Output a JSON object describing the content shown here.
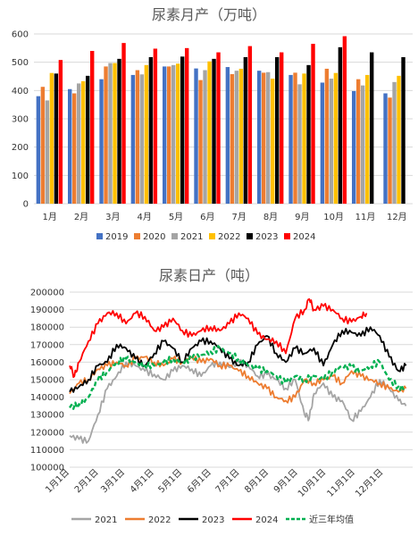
{
  "chart_data": [
    {
      "type": "bar",
      "title": "尿素月产（万吨）",
      "categories": [
        "1月",
        "2月",
        "3月",
        "4月",
        "5月",
        "6月",
        "7月",
        "8月",
        "9月",
        "10月",
        "11月",
        "12月"
      ],
      "ylim": [
        0,
        600
      ],
      "yticks": [
        "0",
        "100",
        "200",
        "300",
        "400",
        "500",
        "600"
      ],
      "legend_position": "bottom",
      "series": [
        {
          "name": "2019",
          "color": "#4472C4",
          "values": [
            380,
            405,
            440,
            455,
            485,
            478,
            483,
            470,
            455,
            428,
            398,
            390
          ]
        },
        {
          "name": "2020",
          "color": "#ED7D31",
          "values": [
            413,
            390,
            485,
            472,
            485,
            437,
            458,
            463,
            463,
            477,
            440,
            375
          ]
        },
        {
          "name": "2021",
          "color": "#A5A5A5",
          "values": [
            365,
            425,
            497,
            457,
            490,
            472,
            470,
            465,
            422,
            442,
            418,
            430
          ]
        },
        {
          "name": "2022",
          "color": "#FFC000",
          "values": [
            462,
            433,
            497,
            490,
            495,
            503,
            477,
            442,
            460,
            462,
            455,
            452
          ]
        },
        {
          "name": "2023",
          "color": "#000000",
          "values": [
            460,
            452,
            512,
            518,
            520,
            512,
            518,
            518,
            490,
            553,
            535,
            518
          ]
        },
        {
          "name": "2024",
          "color": "#FF0000",
          "values": [
            508,
            540,
            568,
            548,
            550,
            535,
            557,
            535,
            565,
            592,
            null,
            null
          ]
        }
      ]
    },
    {
      "type": "line",
      "title": "尿素日产（吨）",
      "ylim": [
        100000,
        200000
      ],
      "yticks": [
        "100000",
        "110000",
        "120000",
        "130000",
        "140000",
        "150000",
        "160000",
        "170000",
        "180000",
        "190000",
        "200000"
      ],
      "xticks": [
        "1月1日",
        "2月1日",
        "3月1日",
        "4月1日",
        "5月1日",
        "6月1日",
        "7月1日",
        "8月1日",
        "9月1日",
        "10月1日",
        "11月1日",
        "12月1日"
      ],
      "legend_position": "bottom",
      "series": [
        {
          "name": "2021",
          "color": "#A5A5A5",
          "dash": "",
          "points": [
            [
              0,
              118000
            ],
            [
              10,
              116000
            ],
            [
              20,
              115000
            ],
            [
              30,
              130000
            ],
            [
              40,
              145000
            ],
            [
              50,
              152000
            ],
            [
              60,
              160000
            ],
            [
              70,
              158000
            ],
            [
              80,
              155000
            ],
            [
              90,
              153000
            ],
            [
              100,
              150000
            ],
            [
              110,
              155000
            ],
            [
              120,
              158000
            ],
            [
              130,
              156000
            ],
            [
              140,
              152000
            ],
            [
              150,
              158000
            ],
            [
              160,
              160000
            ],
            [
              170,
              157000
            ],
            [
              180,
              160000
            ],
            [
              190,
              158000
            ],
            [
              200,
              152000
            ],
            [
              210,
              153000
            ],
            [
              220,
              150000
            ],
            [
              230,
              145000
            ],
            [
              240,
              150000
            ],
            [
              250,
              130000
            ],
            [
              255,
              128000
            ],
            [
              260,
              142000
            ],
            [
              270,
              148000
            ],
            [
              280,
              140000
            ],
            [
              290,
              138000
            ],
            [
              300,
              127000
            ],
            [
              310,
              132000
            ],
            [
              320,
              140000
            ],
            [
              330,
              150000
            ],
            [
              340,
              145000
            ],
            [
              350,
              138000
            ],
            [
              358,
              135000
            ]
          ]
        },
        {
          "name": "2022",
          "color": "#ED7D31",
          "dash": "",
          "points": [
            [
              0,
              142000
            ],
            [
              10,
              148000
            ],
            [
              20,
              150000
            ],
            [
              30,
              156000
            ],
            [
              40,
              158000
            ],
            [
              50,
              160000
            ],
            [
              60,
              158000
            ],
            [
              70,
              162000
            ],
            [
              80,
              163000
            ],
            [
              90,
              160000
            ],
            [
              100,
              158000
            ],
            [
              110,
              162000
            ],
            [
              120,
              160000
            ],
            [
              130,
              163000
            ],
            [
              140,
              160000
            ],
            [
              150,
              162000
            ],
            [
              160,
              158000
            ],
            [
              170,
              158000
            ],
            [
              180,
              155000
            ],
            [
              190,
              152000
            ],
            [
              200,
              148000
            ],
            [
              210,
              145000
            ],
            [
              220,
              140000
            ],
            [
              230,
              138000
            ],
            [
              240,
              140000
            ],
            [
              250,
              150000
            ],
            [
              260,
              148000
            ],
            [
              270,
              150000
            ],
            [
              280,
              152000
            ],
            [
              290,
              148000
            ],
            [
              300,
              155000
            ],
            [
              310,
              152000
            ],
            [
              320,
              150000
            ],
            [
              330,
              148000
            ],
            [
              340,
              145000
            ],
            [
              350,
              143000
            ],
            [
              358,
              145000
            ]
          ]
        },
        {
          "name": "2023",
          "color": "#000000",
          "dash": "",
          "points": [
            [
              0,
              143000
            ],
            [
              10,
              146000
            ],
            [
              20,
              150000
            ],
            [
              30,
              158000
            ],
            [
              40,
              160000
            ],
            [
              50,
              170000
            ],
            [
              60,
              168000
            ],
            [
              70,
              162000
            ],
            [
              80,
              158000
            ],
            [
              90,
              165000
            ],
            [
              100,
              172000
            ],
            [
              110,
              168000
            ],
            [
              120,
              160000
            ],
            [
              130,
              168000
            ],
            [
              140,
              172000
            ],
            [
              150,
              172000
            ],
            [
              160,
              168000
            ],
            [
              170,
              162000
            ],
            [
              180,
              158000
            ],
            [
              190,
              160000
            ],
            [
              200,
              170000
            ],
            [
              210,
              175000
            ],
            [
              220,
              165000
            ],
            [
              230,
              160000
            ],
            [
              240,
              168000
            ],
            [
              250,
              165000
            ],
            [
              260,
              168000
            ],
            [
              270,
              158000
            ],
            [
              280,
              170000
            ],
            [
              290,
              178000
            ],
            [
              300,
              177000
            ],
            [
              310,
              175000
            ],
            [
              320,
              180000
            ],
            [
              330,
              175000
            ],
            [
              340,
              163000
            ],
            [
              350,
              155000
            ],
            [
              358,
              158000
            ]
          ]
        },
        {
          "name": "2024",
          "color": "#FF0000",
          "dash": "",
          "points": [
            [
              0,
              158000
            ],
            [
              5,
              152000
            ],
            [
              10,
              160000
            ],
            [
              20,
              172000
            ],
            [
              30,
              182000
            ],
            [
              40,
              188000
            ],
            [
              50,
              188000
            ],
            [
              60,
              182000
            ],
            [
              70,
              188000
            ],
            [
              80,
              186000
            ],
            [
              90,
              178000
            ],
            [
              100,
              180000
            ],
            [
              110,
              185000
            ],
            [
              120,
              178000
            ],
            [
              130,
              175000
            ],
            [
              140,
              178000
            ],
            [
              150,
              180000
            ],
            [
              160,
              178000
            ],
            [
              170,
              182000
            ],
            [
              180,
              188000
            ],
            [
              190,
              185000
            ],
            [
              200,
              176000
            ],
            [
              210,
              173000
            ],
            [
              220,
              172000
            ],
            [
              230,
              165000
            ],
            [
              240,
              185000
            ],
            [
              250,
              190000
            ],
            [
              255,
              196000
            ],
            [
              260,
              190000
            ],
            [
              270,
              192000
            ],
            [
              280,
              190000
            ],
            [
              290,
              185000
            ],
            [
              300,
              183000
            ],
            [
              310,
              186000
            ],
            [
              316,
              188000
            ]
          ]
        },
        {
          "name": "近三年均值",
          "color": "#00B050",
          "dash": "5,3",
          "points": [
            [
              0,
              134000
            ],
            [
              10,
              136000
            ],
            [
              20,
              140000
            ],
            [
              30,
              150000
            ],
            [
              40,
              155000
            ],
            [
              50,
              160000
            ],
            [
              60,
              162000
            ],
            [
              70,
              160000
            ],
            [
              80,
              158000
            ],
            [
              90,
              158000
            ],
            [
              100,
              160000
            ],
            [
              110,
              162000
            ],
            [
              120,
              160000
            ],
            [
              130,
              162000
            ],
            [
              140,
              164000
            ],
            [
              150,
              166000
            ],
            [
              160,
              168000
            ],
            [
              170,
              165000
            ],
            [
              180,
              162000
            ],
            [
              190,
              158000
            ],
            [
              200,
              156000
            ],
            [
              210,
              155000
            ],
            [
              220,
              152000
            ],
            [
              230,
              148000
            ],
            [
              240,
              152000
            ],
            [
              250,
              150000
            ],
            [
              260,
              152000
            ],
            [
              270,
              150000
            ],
            [
              280,
              155000
            ],
            [
              290,
              158000
            ],
            [
              300,
              157000
            ],
            [
              310,
              155000
            ],
            [
              320,
              158000
            ],
            [
              330,
              160000
            ],
            [
              340,
              150000
            ],
            [
              350,
              146000
            ],
            [
              358,
              145000
            ]
          ]
        }
      ]
    }
  ]
}
